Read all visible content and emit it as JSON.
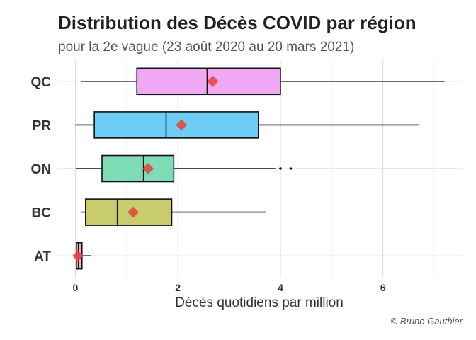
{
  "chart_data": {
    "type": "boxplot",
    "title": "Distribution des Décès COVID par région",
    "subtitle": "pour la 2e vague (23 août 2020 au 20 mars 2021)",
    "xlabel": "Décès quotidiens par million",
    "ylabel": "",
    "caption": "© Bruno Gauthier",
    "xlim": [
      -0.35,
      7.55
    ],
    "xticks": [
      0,
      2,
      4,
      6
    ],
    "grid": true,
    "legend": "none",
    "categories": [
      "QC",
      "PR",
      "ON",
      "BC",
      "AT"
    ],
    "boxes": [
      {
        "category": "QC",
        "min": 0.12,
        "q1": 1.2,
        "median": 2.57,
        "q3": 4.0,
        "max": 7.2,
        "mean": 2.68,
        "outliers": [],
        "color": "#f0a8f5"
      },
      {
        "category": "PR",
        "min": 0.0,
        "q1": 0.37,
        "median": 1.77,
        "q3": 3.57,
        "max": 6.7,
        "mean": 2.07,
        "outliers": [],
        "color": "#6dcdf7"
      },
      {
        "category": "ON",
        "min": 0.02,
        "q1": 0.52,
        "median": 1.33,
        "q3": 1.92,
        "max": 3.9,
        "mean": 1.42,
        "outliers": [
          4.0,
          4.2
        ],
        "color": "#7ddcb5"
      },
      {
        "category": "BC",
        "min": 0.12,
        "q1": 0.2,
        "median": 0.82,
        "q3": 1.88,
        "max": 3.72,
        "mean": 1.13,
        "outliers": [],
        "color": "#c8cc6c"
      },
      {
        "category": "AT",
        "min": 0.0,
        "q1": 0.02,
        "median": 0.06,
        "q3": 0.13,
        "max": 0.3,
        "mean": 0.05,
        "outliers": [],
        "color": "#f4b0b8"
      }
    ],
    "mean_marker_color": "#e3443a"
  }
}
